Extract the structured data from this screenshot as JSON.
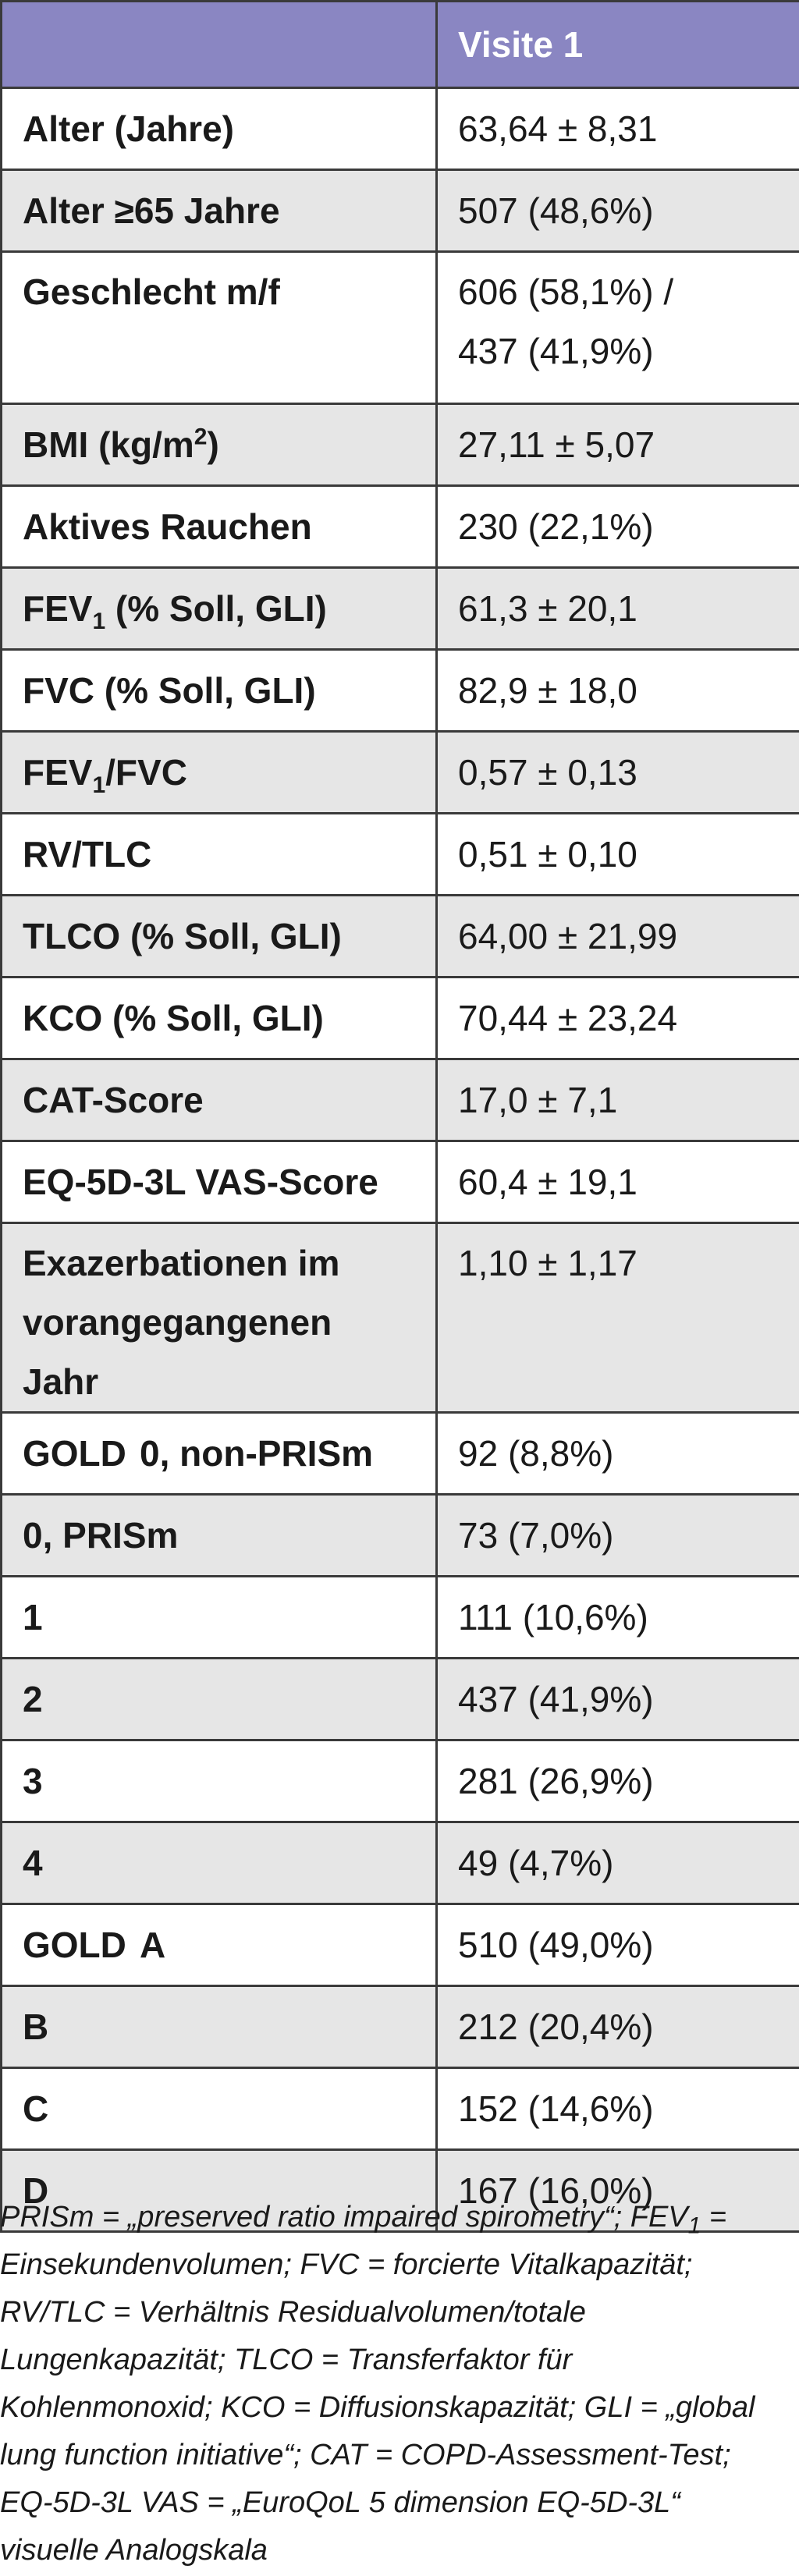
{
  "header": {
    "col1": "",
    "col2": "Visite 1"
  },
  "rows": [
    {
      "label": "Alter (Jahre)",
      "value": "63,64 ± 8,31"
    },
    {
      "label": "Alter ≥65 Jahre",
      "value": "507 (48,6%)"
    },
    {
      "label": "Geschlecht m/f",
      "value_line1": "606 (58,1%) /",
      "value_line2": "437 (41,9%)"
    },
    {
      "label_pre": "BMI (kg/m",
      "label_sup": "2",
      "label_post": ")",
      "value": "27,11 ± 5,07"
    },
    {
      "label": "Aktives Rauchen",
      "value": "230 (22,1%)"
    },
    {
      "label_pre": "FEV",
      "label_sub": "1",
      "label_post": " (% Soll, GLI)",
      "value": "61,3 ± 20,1"
    },
    {
      "label": "FVC (% Soll, GLI)",
      "value": "82,9 ± 18,0"
    },
    {
      "label_pre": "FEV",
      "label_sub": "1",
      "label_post": "/FVC",
      "value": "0,57 ± 0,13"
    },
    {
      "label": "RV/TLC",
      "value": "0,51 ± 0,10"
    },
    {
      "label": "TLCO (% Soll, GLI)",
      "value": "64,00 ± 21,99"
    },
    {
      "label": "KCO (% Soll, GLI)",
      "value": "70,44 ± 23,24"
    },
    {
      "label": "CAT-Score",
      "value": "17,0 ± 7,1"
    },
    {
      "label": "EQ-5D-3L VAS-Score",
      "value": "60,4 ± 19,1"
    },
    {
      "label_line1": "Exazerbationen im",
      "label_line2": "vorangegangenen Jahr",
      "value": "1,10 ± 1,17"
    }
  ],
  "gold_stage": {
    "group": "GOLD",
    "items": [
      {
        "cat": "0, non-PRISm",
        "value": "92 (8,8%)"
      },
      {
        "cat": "0, PRISm",
        "value": "73 (7,0%)"
      },
      {
        "cat": "1",
        "value": "111 (10,6%)"
      },
      {
        "cat": "2",
        "value": "437 (41,9%)"
      },
      {
        "cat": "3",
        "value": "281 (26,9%)"
      },
      {
        "cat": "4",
        "value": "49 (4,7%)"
      }
    ]
  },
  "gold_group": {
    "group": "GOLD",
    "items": [
      {
        "cat": "A",
        "value": "510 (49,0%)"
      },
      {
        "cat": "B",
        "value": "212 (20,4%)"
      },
      {
        "cat": "C",
        "value": "152 (14,6%)"
      },
      {
        "cat": "D",
        "value": "167 (16,0%)"
      }
    ]
  },
  "footnote": {
    "p1": "PRISm = „preserved ratio impaired spirometry“; FEV",
    "p1_sub": "1",
    "p2": " = Einsekundenvolumen; FVC = forcierte Vitalkapazität; RV/TLC = Verhältnis Residualvolumen/totale Lungenkapazität; TLCO = Transferfaktor für Kohlenmonoxid; KCO = Diffusionskapazität; GLI = „global lung function initiative“; CAT = COPD-Assessment-Test; EQ-5D-3L VAS = „EuroQoL 5 dimension EQ-5D-3L“ visuelle Analogskala"
  }
}
